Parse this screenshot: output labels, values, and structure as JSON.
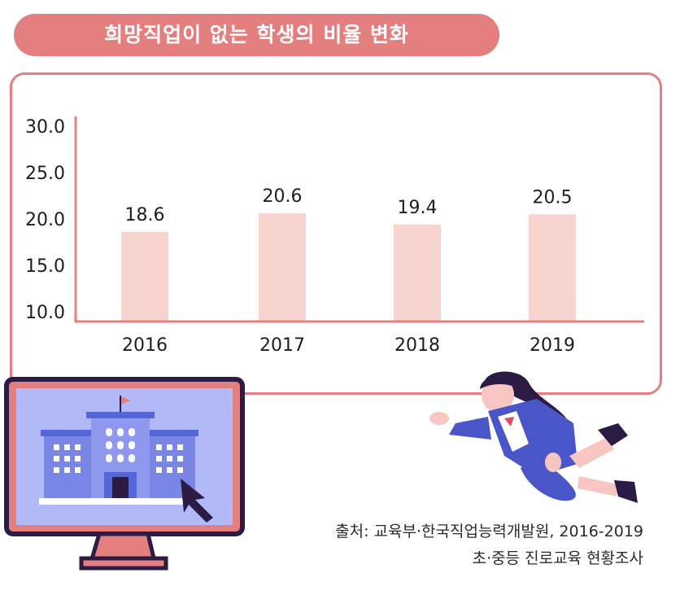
{
  "title": "희망직업이 없는 학생의 비율 변화",
  "chart_data": {
    "type": "bar",
    "categories": [
      "2016",
      "2017",
      "2018",
      "2019"
    ],
    "values": [
      18.6,
      20.6,
      19.4,
      20.5
    ],
    "value_labels": [
      "18.6",
      "20.6",
      "19.4",
      "20.5"
    ],
    "y_ticks": [
      "30.0",
      "25.0",
      "20.0",
      "15.0",
      "10.0"
    ],
    "ylim": [
      10,
      30
    ],
    "grid": false,
    "bar_color": "#f7d4d0",
    "axis_color": "#e37f7f"
  },
  "source": {
    "line1": "출처: 교육부·한국직업능력개발원, 2016-2019",
    "line2": "초·중등 진로교육 현황조사"
  },
  "colors": {
    "accent": "#e37f7f",
    "monitor_screen": "#b3b9f7",
    "building": "#6f7fe0"
  },
  "decorations": [
    "monitor-icon",
    "school-building-icon",
    "mouse-cursor-icon",
    "student-illustration"
  ]
}
